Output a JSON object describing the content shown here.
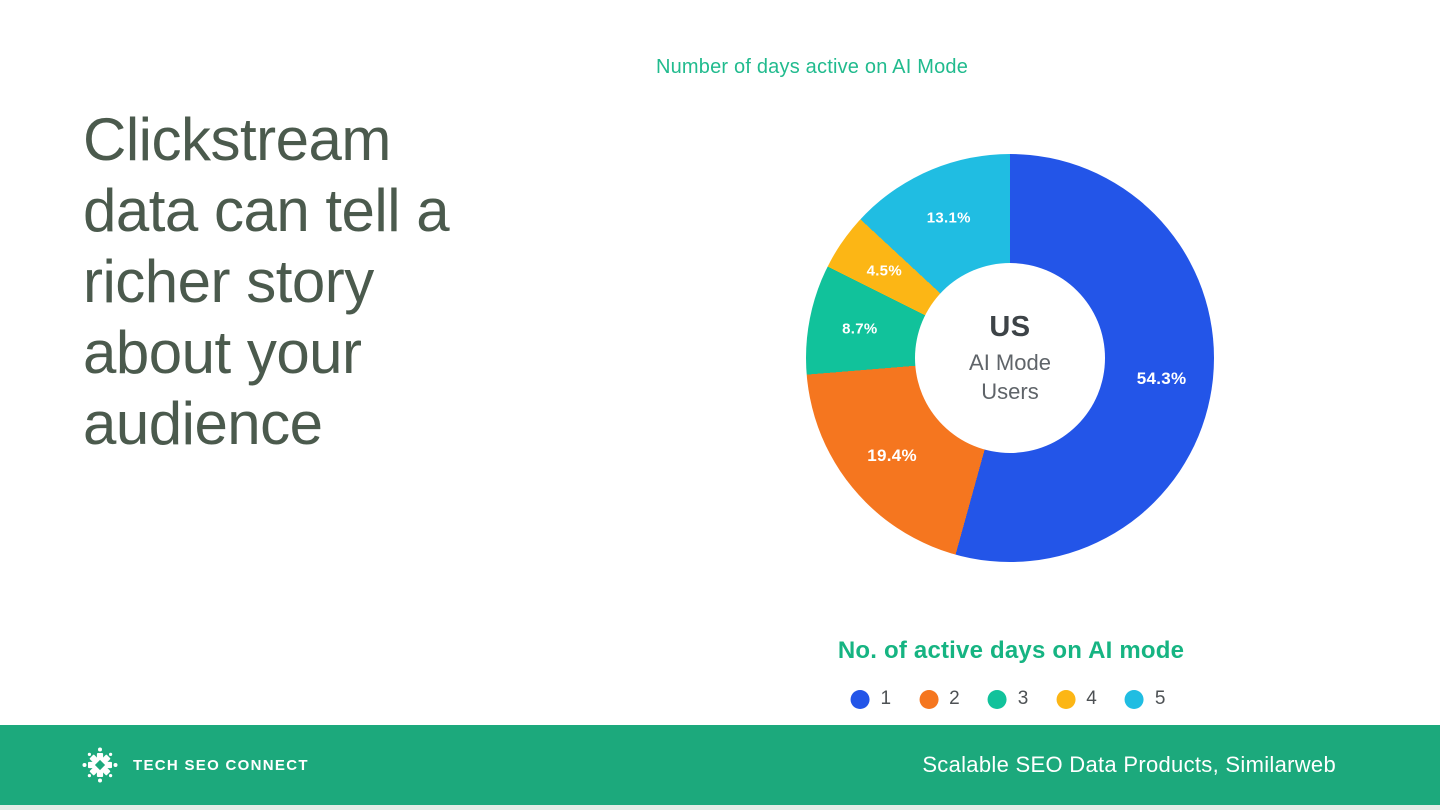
{
  "slide": {
    "headline": "Clickstream\ndata can tell a\nricher story\nabout your\naudience"
  },
  "chart": {
    "title": "Number of days active on AI Mode",
    "center": {
      "title": "US",
      "line1": "AI Mode",
      "line2": "Users"
    },
    "legend_title": "No. of active days on AI mode"
  },
  "chart_data": {
    "type": "pie",
    "subtype": "donut",
    "title": "Number of days active on AI Mode",
    "center_label": {
      "title": "US",
      "subtitle": "AI Mode Users"
    },
    "categories": [
      "1",
      "2",
      "3",
      "4",
      "5"
    ],
    "values": [
      54.3,
      19.4,
      8.7,
      4.5,
      13.1
    ],
    "labels": [
      "54.3%",
      "19.4%",
      "8.7%",
      "4.5%",
      "13.1%"
    ],
    "colors": [
      "#2355e8",
      "#f5761f",
      "#11c29b",
      "#fcb615",
      "#20bde2"
    ],
    "legend_title": "No. of active days on AI mode",
    "legend_position": "bottom",
    "start_angle_deg": 0,
    "direction": "clockwise",
    "units": "percent"
  },
  "footer": {
    "brand": "TECH SEO CONNECT",
    "caption": "Scalable SEO Data Products, Similarweb",
    "bar_color": "#1ca97c"
  },
  "colors": {
    "chart_title_teal": "#21bb8e",
    "legend_title_teal": "#16b482",
    "headline_green": "#4b5a4d",
    "center_title_gray": "#3d4347",
    "center_sub_gray": "#5f6469"
  }
}
